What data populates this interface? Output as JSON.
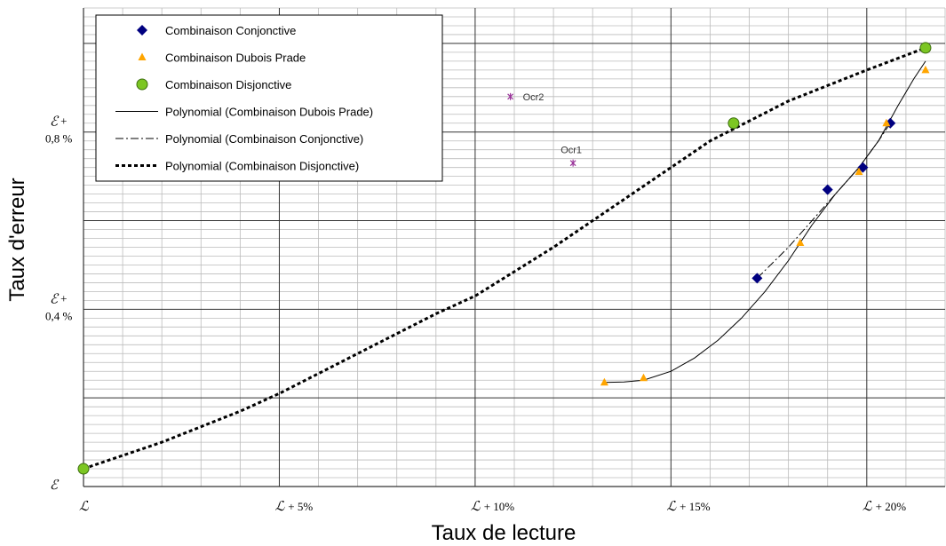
{
  "chart_data": {
    "type": "scatter",
    "xlabel": "Taux de lecture",
    "ylabel": "Taux d'erreur",
    "xlim": [
      0,
      22
    ],
    "ylim": [
      0,
      1.08
    ],
    "grid": true,
    "legend_position": "top-left",
    "x_ticks": [
      {
        "value": 0,
        "script": "ℒ",
        "suffix": ""
      },
      {
        "value": 5,
        "script": "ℒ",
        "suffix": "+ 5%"
      },
      {
        "value": 10,
        "script": "ℒ",
        "suffix": "+ 10%"
      },
      {
        "value": 15,
        "script": "ℒ",
        "suffix": "+ 15%"
      },
      {
        "value": 20,
        "script": "ℒ",
        "suffix": "+ 20%"
      }
    ],
    "y_ticks": [
      {
        "value": 0,
        "script": "ℰ",
        "suffix": "",
        "sub": ""
      },
      {
        "value": 0.4,
        "script": "ℰ",
        "suffix": "+",
        "sub": "0,4 %"
      },
      {
        "value": 0.8,
        "script": "ℰ",
        "suffix": "+",
        "sub": "0,8 %"
      }
    ],
    "series": [
      {
        "name": "Combinaison Conjonctive",
        "marker": "diamond",
        "color": "#000080",
        "points": [
          [
            17.2,
            0.47
          ],
          [
            19.0,
            0.67
          ],
          [
            19.9,
            0.72
          ],
          [
            20.6,
            0.82
          ]
        ]
      },
      {
        "name": "Combinaison Dubois Prade",
        "marker": "triangle",
        "color": "#FFA500",
        "points": [
          [
            13.3,
            0.235
          ],
          [
            14.3,
            0.245
          ],
          [
            18.3,
            0.55
          ],
          [
            19.8,
            0.71
          ],
          [
            20.5,
            0.82
          ],
          [
            21.5,
            0.94
          ]
        ]
      },
      {
        "name": "Combinaison Disjonctive",
        "marker": "circle",
        "color": "#7CC623",
        "points": [
          [
            0.0,
            0.04
          ],
          [
            16.6,
            0.82
          ],
          [
            21.5,
            0.99
          ]
        ]
      }
    ],
    "trendlines": [
      {
        "name": "Polynomial (Combinaison Dubois Prade)",
        "style": "solid",
        "of": "Combinaison Dubois Prade",
        "points": [
          [
            13.3,
            0.235
          ],
          [
            13.8,
            0.236
          ],
          [
            14.3,
            0.24
          ],
          [
            15.0,
            0.26
          ],
          [
            15.6,
            0.29
          ],
          [
            16.2,
            0.33
          ],
          [
            16.8,
            0.38
          ],
          [
            17.4,
            0.44
          ],
          [
            18.0,
            0.51
          ],
          [
            18.6,
            0.59
          ],
          [
            19.2,
            0.66
          ],
          [
            19.8,
            0.72
          ],
          [
            20.3,
            0.78
          ],
          [
            20.8,
            0.86
          ],
          [
            21.2,
            0.92
          ],
          [
            21.5,
            0.96
          ]
        ]
      },
      {
        "name": "Polynomial (Combinaison Conjonctive)",
        "style": "dashdot",
        "of": "Combinaison Conjonctive",
        "points": [
          [
            17.2,
            0.47
          ],
          [
            18.0,
            0.54
          ],
          [
            18.6,
            0.6
          ],
          [
            19.2,
            0.66
          ],
          [
            19.8,
            0.72
          ],
          [
            20.3,
            0.78
          ],
          [
            20.6,
            0.82
          ]
        ]
      },
      {
        "name": "Polynomial (Combinaison Disjonctive)",
        "style": "dotted",
        "of": "Combinaison Disjonctive",
        "points": [
          [
            0.0,
            0.04
          ],
          [
            2.0,
            0.1
          ],
          [
            4.0,
            0.17
          ],
          [
            5.0,
            0.21
          ],
          [
            7.0,
            0.3
          ],
          [
            9.0,
            0.39
          ],
          [
            10.0,
            0.43
          ],
          [
            12.0,
            0.54
          ],
          [
            14.0,
            0.66
          ],
          [
            16.0,
            0.78
          ],
          [
            18.0,
            0.87
          ],
          [
            20.0,
            0.94
          ],
          [
            21.5,
            0.99
          ]
        ]
      }
    ],
    "annotations": [
      {
        "label": "Ocr2",
        "x": 10.9,
        "y": 0.88,
        "color": "#993399",
        "label_side": "right"
      },
      {
        "label": "Ocr1",
        "x": 12.5,
        "y": 0.73,
        "color": "#993399",
        "label_side": "above"
      }
    ]
  }
}
